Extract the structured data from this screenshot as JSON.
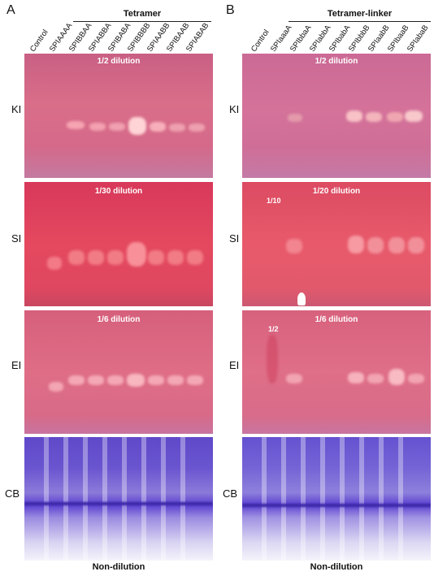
{
  "panels": {
    "a": {
      "letter": "A",
      "group": "Tetramer",
      "lanes": [
        "Control",
        "SPIAAAA",
        "SPIBBAA",
        "SPIABBA",
        "SPIBABA",
        "SPIBBBB",
        "SPIAABB",
        "SPIBAAB",
        "SPIABAB"
      ]
    },
    "b": {
      "letter": "B",
      "group": "Tetramer-linker",
      "lanes": [
        "Control",
        "SPIaaaA",
        "SPIbbaA",
        "SPIabbA",
        "SPIbabA",
        "SPIbbbB",
        "SPIaabB",
        "SPIbaaB",
        "SPIabaB"
      ]
    }
  },
  "rows": {
    "ki": "KI",
    "si": "SI",
    "ei": "EI",
    "cb": "CB"
  },
  "dilutions": {
    "a_ki": "1/2 dilution",
    "a_si": "1/30 dilution",
    "a_ei": "1/6 dilution",
    "b_ki": "1/2 dilution",
    "b_si": "1/20 dilution",
    "b_ei": "1/6 dilution",
    "b_si_note": "1/10",
    "b_ei_note": "1/2",
    "non_dilution": "Non-dilution"
  },
  "colors": {
    "ki_gel": "#d66e88",
    "si_gel": "#e0445f",
    "ei_gel": "#dc6883",
    "cb_stain": "#5a3fd0"
  }
}
